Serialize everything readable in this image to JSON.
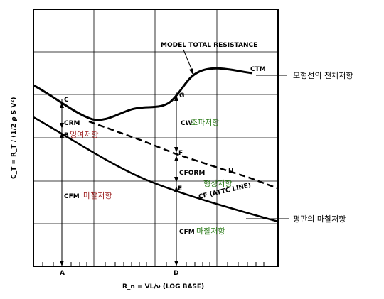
{
  "axes": {
    "y_label": "C_T = R_T / (1/2 ρ S V²)",
    "x_label": "R_n = VL/ν (LOG BASE)",
    "x_ticks": [
      "A",
      "D"
    ]
  },
  "curves": {
    "total_resistance_label": "MODEL TOTAL RESISTANCE",
    "ctm": "CTM",
    "form_line_label": "H",
    "friction_line_label": "CF (ATTC LINE)"
  },
  "points": {
    "c": "C",
    "g": "G",
    "b": "B",
    "f": "F",
    "e": "E"
  },
  "components": {
    "crm": "CRM",
    "cw": "CW",
    "cform": "CFORM",
    "cfm_left": "CFM",
    "cfm_right": "CFM"
  },
  "korean": {
    "total_model": "모형선의 전체저항",
    "wave": "조파저항",
    "residual": "잉여저항",
    "form": "형상저항",
    "friction_left": "마찰저항",
    "friction_right": "마찰저항",
    "flat_plate": "평판의 마찰저항"
  },
  "colors": {
    "green": "#2e7d1c",
    "red": "#9b1b1b",
    "ink": "#000000"
  }
}
